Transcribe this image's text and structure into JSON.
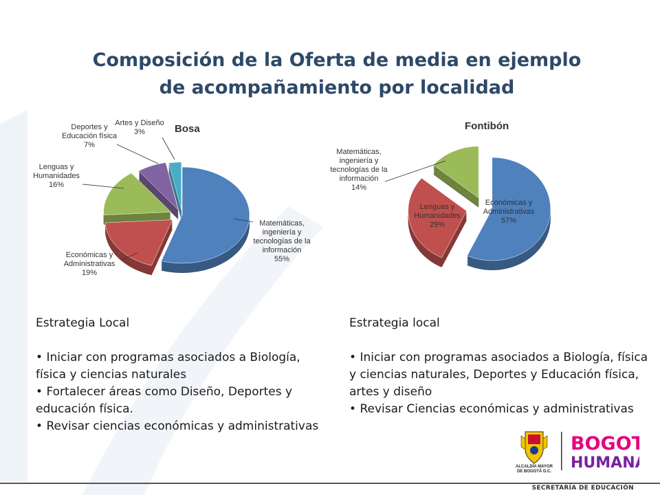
{
  "title": {
    "line1": "Composición de la Oferta de media en ejemplo",
    "line2": "de acompañamiento por localidad"
  },
  "chart_data": [
    {
      "type": "pie",
      "title": "Bosa",
      "categories": [
        "Matemáticas, ingeniería y tecnologías de la información",
        "Económicas y Administrativas",
        "Lenguas y Humanidades",
        "Deportes y Educación física",
        "Artes y Diseño"
      ],
      "values": [
        55,
        19,
        16,
        7,
        3
      ],
      "labels": [
        "55%",
        "19%",
        "16%",
        "7%",
        "3%"
      ],
      "colors": [
        "#4F81BD",
        "#C0504D",
        "#9BBB59",
        "#8064A2",
        "#4BACC6"
      ]
    },
    {
      "type": "pie",
      "title": "Fontibón",
      "categories": [
        "Económicas y Administrativas",
        "Lenguas y Humanidades",
        "Matemáticas, ingeniería y tecnologías de la información"
      ],
      "values": [
        57,
        29,
        14
      ],
      "labels": [
        "57%",
        "29%",
        "14%"
      ],
      "colors": [
        "#4F81BD",
        "#C0504D",
        "#9BBB59"
      ]
    }
  ],
  "strategy_left": {
    "heading": "Estrategia Local",
    "items": [
      "Iniciar con programas asociados a Biología, física y ciencias naturales",
      "Fortalecer áreas como Diseño, Deportes y educación física.",
      "Revisar ciencias económicas y administrativas"
    ]
  },
  "strategy_right": {
    "heading": "Estrategia local",
    "items": [
      "Iniciar con programas asociados a Biología, física y ciencias naturales, Deportes y Educación física, artes y diseño",
      "Revisar Ciencias económicas y administrativas"
    ]
  },
  "logo": {
    "alcaldia_line1": "ALCALDÍA MAYOR",
    "alcaldia_line2": "DE BOGOTÁ D.C.",
    "brand_line1": "BOGOTÁ",
    "brand_line2": "HUMANA"
  },
  "footer": "SECRETARÍA DE EDUCACIÓN"
}
